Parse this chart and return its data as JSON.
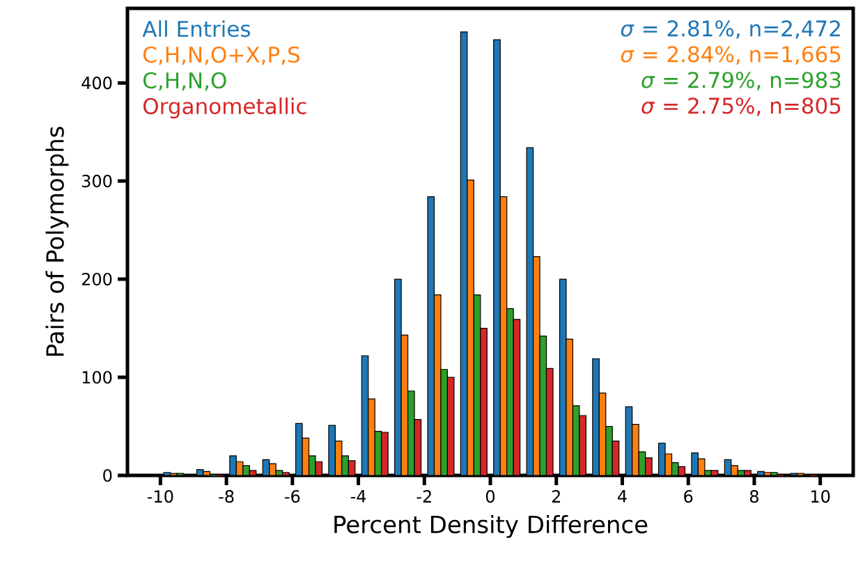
{
  "chart_data": {
    "type": "histogram",
    "xlabel": "Percent Density Difference",
    "ylabel": "Pairs of Polymorphs",
    "bins": [
      -10,
      -9,
      -8,
      -7,
      -6,
      -5,
      -4,
      -3,
      -2,
      -1,
      0,
      1,
      2,
      3,
      4,
      5,
      6,
      7,
      8,
      9,
      10
    ],
    "series": [
      {
        "name": "All Entries",
        "color": "#1f77b4",
        "values": [
          3,
          6,
          20,
          16,
          53,
          51,
          122,
          200,
          284,
          452,
          444,
          334,
          200,
          119,
          70,
          33,
          23,
          16,
          4,
          2
        ]
      },
      {
        "name": "C,H,N,O+X,P,S",
        "color": "#ff7f0e",
        "values": [
          2,
          4,
          14,
          12,
          38,
          35,
          78,
          143,
          184,
          301,
          284,
          223,
          139,
          84,
          52,
          22,
          17,
          10,
          3,
          2
        ]
      },
      {
        "name": "C,H,N,O",
        "color": "#2ca02c",
        "values": [
          2,
          0,
          10,
          5,
          20,
          20,
          45,
          86,
          108,
          184,
          170,
          142,
          71,
          50,
          24,
          13,
          5,
          5,
          3,
          1
        ]
      },
      {
        "name": "Organometallic",
        "color": "#d62728",
        "values": [
          1,
          0,
          5,
          3,
          14,
          15,
          44,
          57,
          100,
          150,
          159,
          109,
          61,
          35,
          18,
          9,
          5,
          5,
          0,
          0
        ]
      }
    ],
    "annotations": [
      "*σ* = 2.81%, n=2,472",
      "*σ* = 2.84%, n=1,665",
      "*σ* = 2.79%, n=983",
      "*σ* = 2.75%, n=805"
    ],
    "xlim": [
      -11,
      11
    ],
    "ylim": [
      0,
      476
    ],
    "xticks": [
      -10,
      -8,
      -6,
      -4,
      -2,
      0,
      2,
      4,
      6,
      8,
      10
    ],
    "yticks": [
      0,
      100,
      200,
      300,
      400
    ],
    "legend": "top left",
    "grid": false
  }
}
